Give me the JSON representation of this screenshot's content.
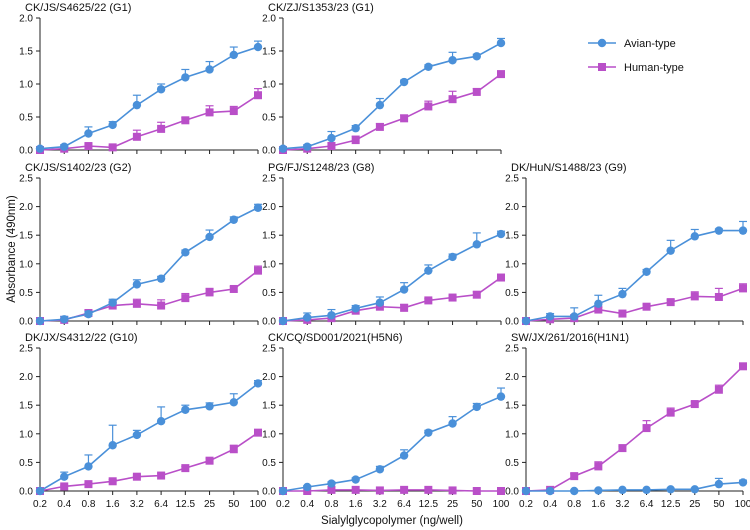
{
  "figure": {
    "ylabel": "Absorbance (490nm)",
    "xlabel": "Sialylglycopolymer (ng/well)"
  },
  "legend": {
    "items": [
      {
        "label": "Avian-type",
        "color": "#4A90D9",
        "marker": "circle"
      },
      {
        "label": "Human-type",
        "color": "#B94FC8",
        "marker": "square"
      }
    ]
  },
  "chart_data": [
    {
      "type": "line",
      "title": "CK/JS/S4625/22 (G1)",
      "categories": [
        "0.2",
        "0.4",
        "0.8",
        "1.6",
        "3.2",
        "6.4",
        "12.5",
        "25",
        "50",
        "100"
      ],
      "ylim": [
        0,
        2.0
      ],
      "yticks": [
        "0.0",
        "0.5",
        "1.0",
        "1.5",
        "2.0"
      ],
      "series": [
        {
          "name": "Avian-type",
          "values": [
            0.02,
            0.05,
            0.25,
            0.38,
            0.68,
            0.92,
            1.1,
            1.22,
            1.44,
            1.56
          ],
          "errors": [
            0.02,
            0.03,
            0.1,
            0.05,
            0.15,
            0.08,
            0.12,
            0.12,
            0.12,
            0.09
          ]
        },
        {
          "name": "Human-type",
          "values": [
            0.0,
            0.02,
            0.06,
            0.04,
            0.2,
            0.32,
            0.45,
            0.57,
            0.59,
            0.83
          ],
          "errors": [
            0.0,
            0.02,
            0.03,
            0.03,
            0.1,
            0.1,
            0.04,
            0.1,
            0.07,
            0.1
          ]
        }
      ]
    },
    {
      "type": "line",
      "title": "CK/ZJ/S1353/23 (G1)",
      "categories": [
        "0.2",
        "0.4",
        "0.8",
        "1.6",
        "3.2",
        "6.4",
        "12.5",
        "25",
        "50",
        "100"
      ],
      "ylim": [
        0,
        2.0
      ],
      "yticks": [
        "0.0",
        "0.5",
        "1.0",
        "1.5",
        "2.0"
      ],
      "series": [
        {
          "name": "Avian-type",
          "values": [
            0.02,
            0.05,
            0.18,
            0.33,
            0.68,
            1.03,
            1.26,
            1.36,
            1.42,
            1.62
          ],
          "errors": [
            0.02,
            0.03,
            0.1,
            0.04,
            0.1,
            0.03,
            0.03,
            0.12,
            0.03,
            0.07
          ]
        },
        {
          "name": "Human-type",
          "values": [
            0.0,
            0.02,
            0.06,
            0.15,
            0.35,
            0.48,
            0.66,
            0.77,
            0.88,
            1.15
          ],
          "errors": [
            0.0,
            0.02,
            0.05,
            0.06,
            0.05,
            0.05,
            0.08,
            0.12,
            0.05,
            0.04
          ]
        }
      ]
    },
    {
      "type": "line",
      "title": "CK/JS/S1402/23 (G2)",
      "categories": [
        "0.2",
        "0.4",
        "0.8",
        "1.6",
        "3.2",
        "6.4",
        "12.5",
        "25",
        "50",
        "100"
      ],
      "ylim": [
        0,
        2.5
      ],
      "yticks": [
        "0.0",
        "0.5",
        "1.0",
        "1.5",
        "2.0",
        "2.5"
      ],
      "series": [
        {
          "name": "Avian-type",
          "values": [
            0.0,
            0.03,
            0.12,
            0.32,
            0.64,
            0.74,
            1.2,
            1.47,
            1.77,
            1.98
          ],
          "errors": [
            0.0,
            0.05,
            0.05,
            0.06,
            0.08,
            0.04,
            0.04,
            0.12,
            0.05,
            0.06
          ]
        },
        {
          "name": "Human-type",
          "values": [
            0.0,
            0.02,
            0.14,
            0.27,
            0.3,
            0.27,
            0.4,
            0.5,
            0.56,
            0.88
          ],
          "errors": [
            0.0,
            0.02,
            0.05,
            0.08,
            0.08,
            0.1,
            0.08,
            0.07,
            0.04,
            0.08
          ]
        }
      ]
    },
    {
      "type": "line",
      "title": "PG/FJ/S1248/23 (G8)",
      "categories": [
        "0.2",
        "0.4",
        "0.8",
        "1.6",
        "3.2",
        "6.4",
        "12.5",
        "25",
        "50",
        "100"
      ],
      "ylim": [
        0,
        2.5
      ],
      "yticks": [
        "0.0",
        "0.5",
        "1.0",
        "1.5",
        "2.0",
        "2.5"
      ],
      "series": [
        {
          "name": "Avian-type",
          "values": [
            0.0,
            0.06,
            0.1,
            0.22,
            0.32,
            0.55,
            0.88,
            1.12,
            1.34,
            1.52
          ],
          "errors": [
            0.0,
            0.08,
            0.1,
            0.05,
            0.1,
            0.12,
            0.1,
            0.05,
            0.2,
            0.05
          ]
        },
        {
          "name": "Human-type",
          "values": [
            0.0,
            0.02,
            0.05,
            0.18,
            0.25,
            0.23,
            0.36,
            0.41,
            0.46,
            0.76
          ],
          "errors": [
            0.0,
            0.02,
            0.05,
            0.05,
            0.04,
            0.06,
            0.03,
            0.03,
            0.05,
            0.04
          ]
        }
      ]
    },
    {
      "type": "line",
      "title": "DK/HuN/S1488/23 (G9)",
      "categories": [
        "0.2",
        "0.4",
        "0.8",
        "1.6",
        "3.2",
        "6.4",
        "12.5",
        "25",
        "50",
        "100"
      ],
      "ylim": [
        0,
        2.5
      ],
      "yticks": [
        "0.0",
        "0.5",
        "1.0",
        "1.5",
        "2.0",
        "2.5"
      ],
      "series": [
        {
          "name": "Avian-type",
          "values": [
            0.0,
            0.08,
            0.08,
            0.3,
            0.47,
            0.86,
            1.23,
            1.48,
            1.58,
            1.58
          ],
          "errors": [
            0.0,
            0.05,
            0.15,
            0.15,
            0.1,
            0.04,
            0.18,
            0.12,
            0.03,
            0.16
          ]
        },
        {
          "name": "Human-type",
          "values": [
            0.0,
            0.03,
            0.05,
            0.2,
            0.13,
            0.25,
            0.33,
            0.43,
            0.42,
            0.57
          ],
          "errors": [
            0.0,
            0.02,
            0.05,
            0.04,
            0.04,
            0.04,
            0.04,
            0.08,
            0.15,
            0.08
          ]
        }
      ]
    },
    {
      "type": "line",
      "title": "DK/JX/S4312/22 (G10)",
      "categories": [
        "0.2",
        "0.4",
        "0.8",
        "1.6",
        "3.2",
        "6.4",
        "12.5",
        "25",
        "50",
        "100"
      ],
      "ylim": [
        0,
        2.5
      ],
      "yticks": [
        "0.0",
        "0.5",
        "1.0",
        "1.5",
        "2.0",
        "2.5"
      ],
      "series": [
        {
          "name": "Avian-type",
          "values": [
            0.0,
            0.25,
            0.43,
            0.8,
            0.98,
            1.22,
            1.42,
            1.48,
            1.55,
            1.88
          ],
          "errors": [
            0.0,
            0.08,
            0.2,
            0.35,
            0.08,
            0.25,
            0.08,
            0.06,
            0.15,
            0.05
          ]
        },
        {
          "name": "Human-type",
          "values": [
            0.0,
            0.08,
            0.12,
            0.17,
            0.25,
            0.27,
            0.4,
            0.53,
            0.73,
            1.02
          ],
          "errors": [
            0.0,
            0.02,
            0.02,
            0.03,
            0.03,
            0.04,
            0.03,
            0.04,
            0.07,
            0.03
          ]
        }
      ]
    },
    {
      "type": "line",
      "title": "CK/CQ/SD001/2021(H5N6)",
      "categories": [
        "0.2",
        "0.4",
        "0.8",
        "1.6",
        "3.2",
        "6.4",
        "12.5",
        "25",
        "50",
        "100"
      ],
      "ylim": [
        0,
        2.5
      ],
      "yticks": [
        "0.0",
        "0.5",
        "1.0",
        "1.5",
        "2.0",
        "2.5"
      ],
      "series": [
        {
          "name": "Avian-type",
          "values": [
            0.0,
            0.07,
            0.13,
            0.2,
            0.38,
            0.62,
            1.02,
            1.18,
            1.47,
            1.65
          ],
          "errors": [
            0.0,
            0.02,
            0.03,
            0.03,
            0.05,
            0.1,
            0.04,
            0.12,
            0.06,
            0.15
          ]
        },
        {
          "name": "Human-type",
          "values": [
            0.0,
            0.0,
            0.02,
            0.02,
            0.01,
            0.02,
            0.02,
            0.01,
            0.0,
            0.0
          ],
          "errors": [
            0.0,
            0.0,
            0.01,
            0.01,
            0.01,
            0.01,
            0.01,
            0.01,
            0.0,
            0.0
          ]
        }
      ]
    },
    {
      "type": "line",
      "title": "SW/JX/261/2016(H1N1)",
      "categories": [
        "0.2",
        "0.4",
        "0.8",
        "1.6",
        "3.2",
        "6.4",
        "12.5",
        "25",
        "50",
        "100"
      ],
      "ylim": [
        0,
        2.5
      ],
      "yticks": [
        "0.0",
        "0.5",
        "1.0",
        "1.5",
        "2.0",
        "2.5"
      ],
      "series": [
        {
          "name": "Avian-type",
          "values": [
            0.0,
            0.0,
            0.0,
            0.01,
            0.02,
            0.02,
            0.03,
            0.03,
            0.12,
            0.15
          ],
          "errors": [
            0.0,
            0.0,
            0.0,
            0.01,
            0.01,
            0.01,
            0.02,
            0.02,
            0.1,
            0.04
          ]
        },
        {
          "name": "Human-type",
          "values": [
            0.0,
            0.02,
            0.26,
            0.43,
            0.75,
            1.1,
            1.37,
            1.52,
            1.77,
            2.18
          ],
          "errors": [
            0.0,
            0.02,
            0.04,
            0.08,
            0.03,
            0.13,
            0.08,
            0.04,
            0.08,
            0.04
          ]
        }
      ]
    }
  ]
}
